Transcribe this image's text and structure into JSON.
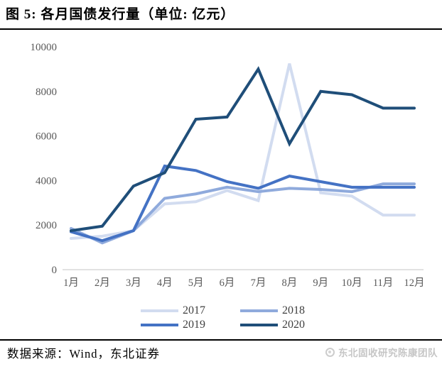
{
  "figure": {
    "title": "图 5: 各月国债发行量（单位: 亿元）",
    "source": "数据来源：Wind，东北证券",
    "watermark": "东北固收研究陈康团队"
  },
  "chart_data": {
    "type": "line",
    "title": "各月国债发行量",
    "unit": "亿元",
    "xlabel": "",
    "ylabel": "",
    "categories": [
      "1月",
      "2月",
      "3月",
      "4月",
      "5月",
      "6月",
      "7月",
      "8月",
      "9月",
      "10月",
      "11月",
      "12月"
    ],
    "series": [
      {
        "name": "2017",
        "color": "#D2DCF0",
        "values": [
          1400,
          1500,
          1750,
          2950,
          3050,
          3550,
          3100,
          9250,
          3450,
          3300,
          2450,
          2450
        ]
      },
      {
        "name": "2018",
        "color": "#8FAADC",
        "values": [
          1850,
          1200,
          1750,
          3200,
          3400,
          3700,
          3500,
          3650,
          3600,
          3500,
          3850,
          3850
        ]
      },
      {
        "name": "2019",
        "color": "#4472C4",
        "values": [
          1700,
          1300,
          1750,
          4650,
          4450,
          3950,
          3650,
          4200,
          3950,
          3700,
          3700,
          3700
        ]
      },
      {
        "name": "2020",
        "color": "#1F4E79",
        "values": [
          1750,
          1950,
          3750,
          4350,
          6750,
          6850,
          9000,
          5650,
          8000,
          7850,
          7250,
          7250
        ]
      }
    ],
    "ylim": [
      0,
      10000
    ],
    "yticks": [
      0,
      2000,
      4000,
      6000,
      8000,
      10000
    ],
    "grid": false,
    "legend_position": "bottom",
    "axis_label_color": "#595959",
    "baseline_color": "#d9d9d9"
  }
}
